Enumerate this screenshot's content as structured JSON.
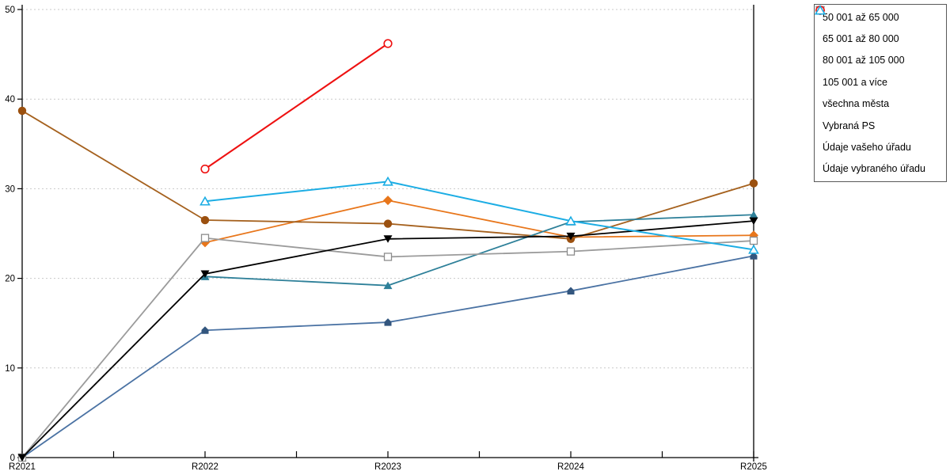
{
  "page": {
    "background": "#FFFFFF"
  },
  "chart_data": {
    "type": "line",
    "title": "",
    "xlabel": "",
    "ylabel": "",
    "categories": [
      "R2021",
      "R2022",
      "R2023",
      "R2024",
      "R2025"
    ],
    "y_tick_labels": [
      "0",
      "10",
      "20",
      "30",
      "40",
      "50"
    ],
    "ylim": [
      0,
      50
    ],
    "y_tick_step": 10,
    "grid": {
      "horizontal": true,
      "style": "dotted",
      "color": "#C9C9C9"
    },
    "axis_color": "#000000",
    "legend_position": "top-right",
    "series": [
      {
        "name": "50 001 až 65 000",
        "marker": "diamond",
        "color": "#E8761B",
        "line_width": 1.8,
        "values": [
          null,
          24.0,
          28.7,
          24.6,
          24.8
        ]
      },
      {
        "name": "65 001 až 80 000",
        "marker": "circle",
        "color": "#9B500F",
        "line_color": "#A5611E",
        "line_width": 1.8,
        "values": [
          38.7,
          26.5,
          26.1,
          24.4,
          30.6
        ]
      },
      {
        "name": "80 001 až 105 000",
        "marker": "triangle",
        "color": "#2E8099",
        "line_width": 1.8,
        "values": [
          null,
          20.2,
          19.2,
          26.3,
          27.1
        ]
      },
      {
        "name": "105 001 a více",
        "marker": "pentagon",
        "color": "#33567E",
        "line_color": "#4A72A3",
        "line_width": 1.8,
        "values": [
          0,
          14.2,
          15.1,
          18.6,
          22.5
        ]
      },
      {
        "name": "všechna města",
        "marker": "triangle-down",
        "color": "#000000",
        "line_width": 1.8,
        "values": [
          0,
          20.5,
          24.4,
          24.7,
          26.4
        ]
      },
      {
        "name": "Vybraná PS",
        "marker": "square-open",
        "color": "#8C8C8C",
        "line_color": "#9B9B9B",
        "line_width": 1.8,
        "values": [
          0,
          24.5,
          22.4,
          23.0,
          24.2
        ]
      },
      {
        "name": "Údaje vašeho úřadu",
        "marker": "circle-open",
        "color": "#EE1111",
        "line_width": 2.1,
        "values": [
          null,
          32.2,
          46.2,
          null,
          null
        ]
      },
      {
        "name": "Údaje vybraného úřadu",
        "marker": "triangle-open",
        "color": "#1CADE4",
        "line_width": 2.0,
        "values": [
          null,
          28.6,
          30.8,
          26.4,
          23.2
        ]
      }
    ],
    "draw_order": [
      0,
      1,
      2,
      3,
      5,
      4,
      6,
      7
    ]
  },
  "legend": {
    "border_color": "#595959",
    "background": "#FFFFFF"
  }
}
